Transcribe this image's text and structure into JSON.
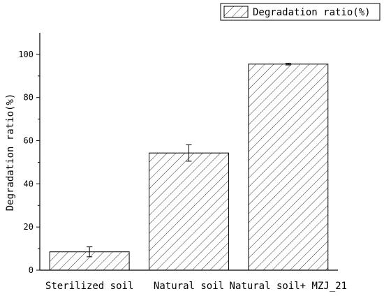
{
  "chart_data": {
    "type": "bar",
    "title": "",
    "xlabel": "",
    "ylabel": "Degradation ratio(%)",
    "ylim": [
      0,
      110
    ],
    "yticks": [
      0,
      20,
      40,
      60,
      80,
      100
    ],
    "categories": [
      "Sterilized soil",
      "Natural soil",
      "Natural soil+ MZJ_21"
    ],
    "series": [
      {
        "name": "Degradation ratio(%)",
        "values": [
          8.5,
          54.3,
          95.5
        ],
        "errors": [
          2.3,
          3.8,
          0.4
        ]
      }
    ],
    "legend_position": "top-right",
    "grid": false,
    "bar_fill": "hatched",
    "colors": {
      "bar_stroke": "#000000",
      "hatch": "#000000",
      "background": "#ffffff"
    }
  }
}
